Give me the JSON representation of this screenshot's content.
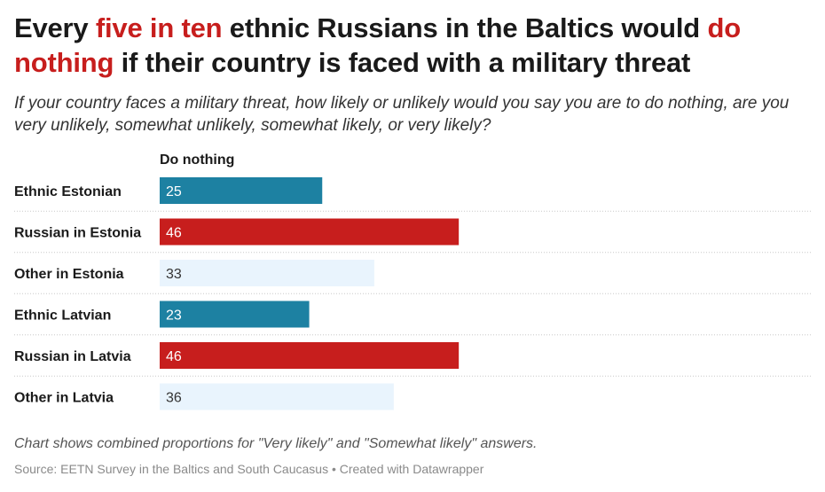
{
  "title": {
    "pre": "Every ",
    "hl1": "five in ten",
    "mid": " ethnic Russians in the Baltics would ",
    "hl2": "do nothing",
    "post": " if their country is faced with a military threat"
  },
  "subtitle": "If your country faces a military threat, how likely or unlikely would you say you are to do nothing, are you very unlikely, somewhat unlikely, somewhat likely, or very likely?",
  "notes": "Chart shows combined proportions for \"Very likely\" and \"Somewhat likely\" answers.",
  "source": "Source: EETN Survey in the Baltics and South Caucasus • Created with Datawrapper",
  "colors": {
    "highlight": "#c71e1d",
    "ethnic": "#1d81a2",
    "russian": "#c71e1d",
    "other": "#e9f4fd"
  },
  "chart_data": {
    "type": "bar",
    "orientation": "horizontal",
    "column_header": "Do nothing",
    "categories": [
      "Ethnic Estonian",
      "Russian in Estonia",
      "Other in Estonia",
      "Ethnic Latvian",
      "Russian in Latvia",
      "Other in Latvia"
    ],
    "values": [
      25,
      46,
      33,
      23,
      46,
      36
    ],
    "bar_colors": [
      "#1d81a2",
      "#c71e1d",
      "#e9f4fd",
      "#1d81a2",
      "#c71e1d",
      "#e9f4fd"
    ],
    "xlim": [
      0,
      100
    ],
    "grid": false
  }
}
